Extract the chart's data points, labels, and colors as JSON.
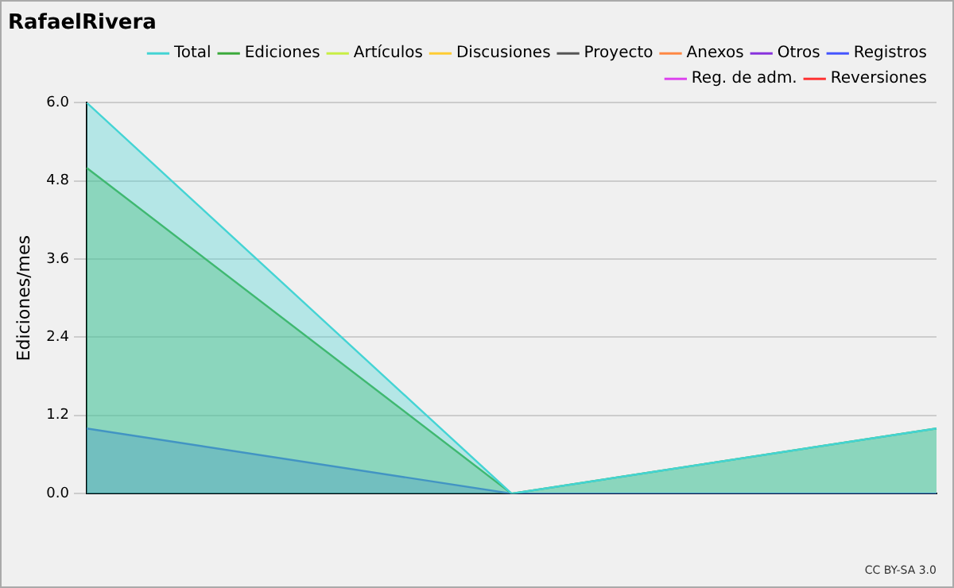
{
  "chart_data": {
    "type": "area",
    "title": "RafaelRivera",
    "ylabel": "Ediciones/mes",
    "categories": [
      null,
      null,
      null
    ],
    "series": [
      {
        "name": "Total",
        "color": "#44d4d4",
        "values": [
          6,
          0,
          1
        ]
      },
      {
        "name": "Ediciones",
        "color": "#3caa3c",
        "values": [
          5,
          0,
          1
        ]
      },
      {
        "name": "Artículos",
        "color": "#c8ee44",
        "values": [
          null,
          null,
          null
        ]
      },
      {
        "name": "Discusiones",
        "color": "#ffcc33",
        "values": [
          null,
          null,
          null
        ]
      },
      {
        "name": "Proyecto",
        "color": "#555555",
        "values": [
          null,
          null,
          null
        ]
      },
      {
        "name": "Anexos",
        "color": "#ff8844",
        "values": [
          null,
          null,
          null
        ]
      },
      {
        "name": "Otros",
        "color": "#8833dd",
        "values": [
          null,
          null,
          null
        ]
      },
      {
        "name": "Registros",
        "color": "#4455ff",
        "values": [
          1,
          0,
          0
        ]
      },
      {
        "name": "Reg. de adm.",
        "color": "#dd44ee",
        "values": [
          null,
          null,
          null
        ]
      },
      {
        "name": "Reversiones",
        "color": "#ff3333",
        "values": [
          null,
          null,
          null
        ]
      }
    ],
    "ylim": [
      0,
      6
    ],
    "yticks": [
      {
        "value": 0,
        "label": "0.0"
      },
      {
        "value": 1.2,
        "label": "1.2"
      },
      {
        "value": 2.4,
        "label": "2.4"
      },
      {
        "value": 3.6,
        "label": "3.6"
      },
      {
        "value": 4.8,
        "label": "4.8"
      },
      {
        "value": 6,
        "label": "6.0"
      }
    ],
    "grid": "y",
    "legend": "top right",
    "annotations": [
      "CC BY-SA 3.0"
    ]
  }
}
